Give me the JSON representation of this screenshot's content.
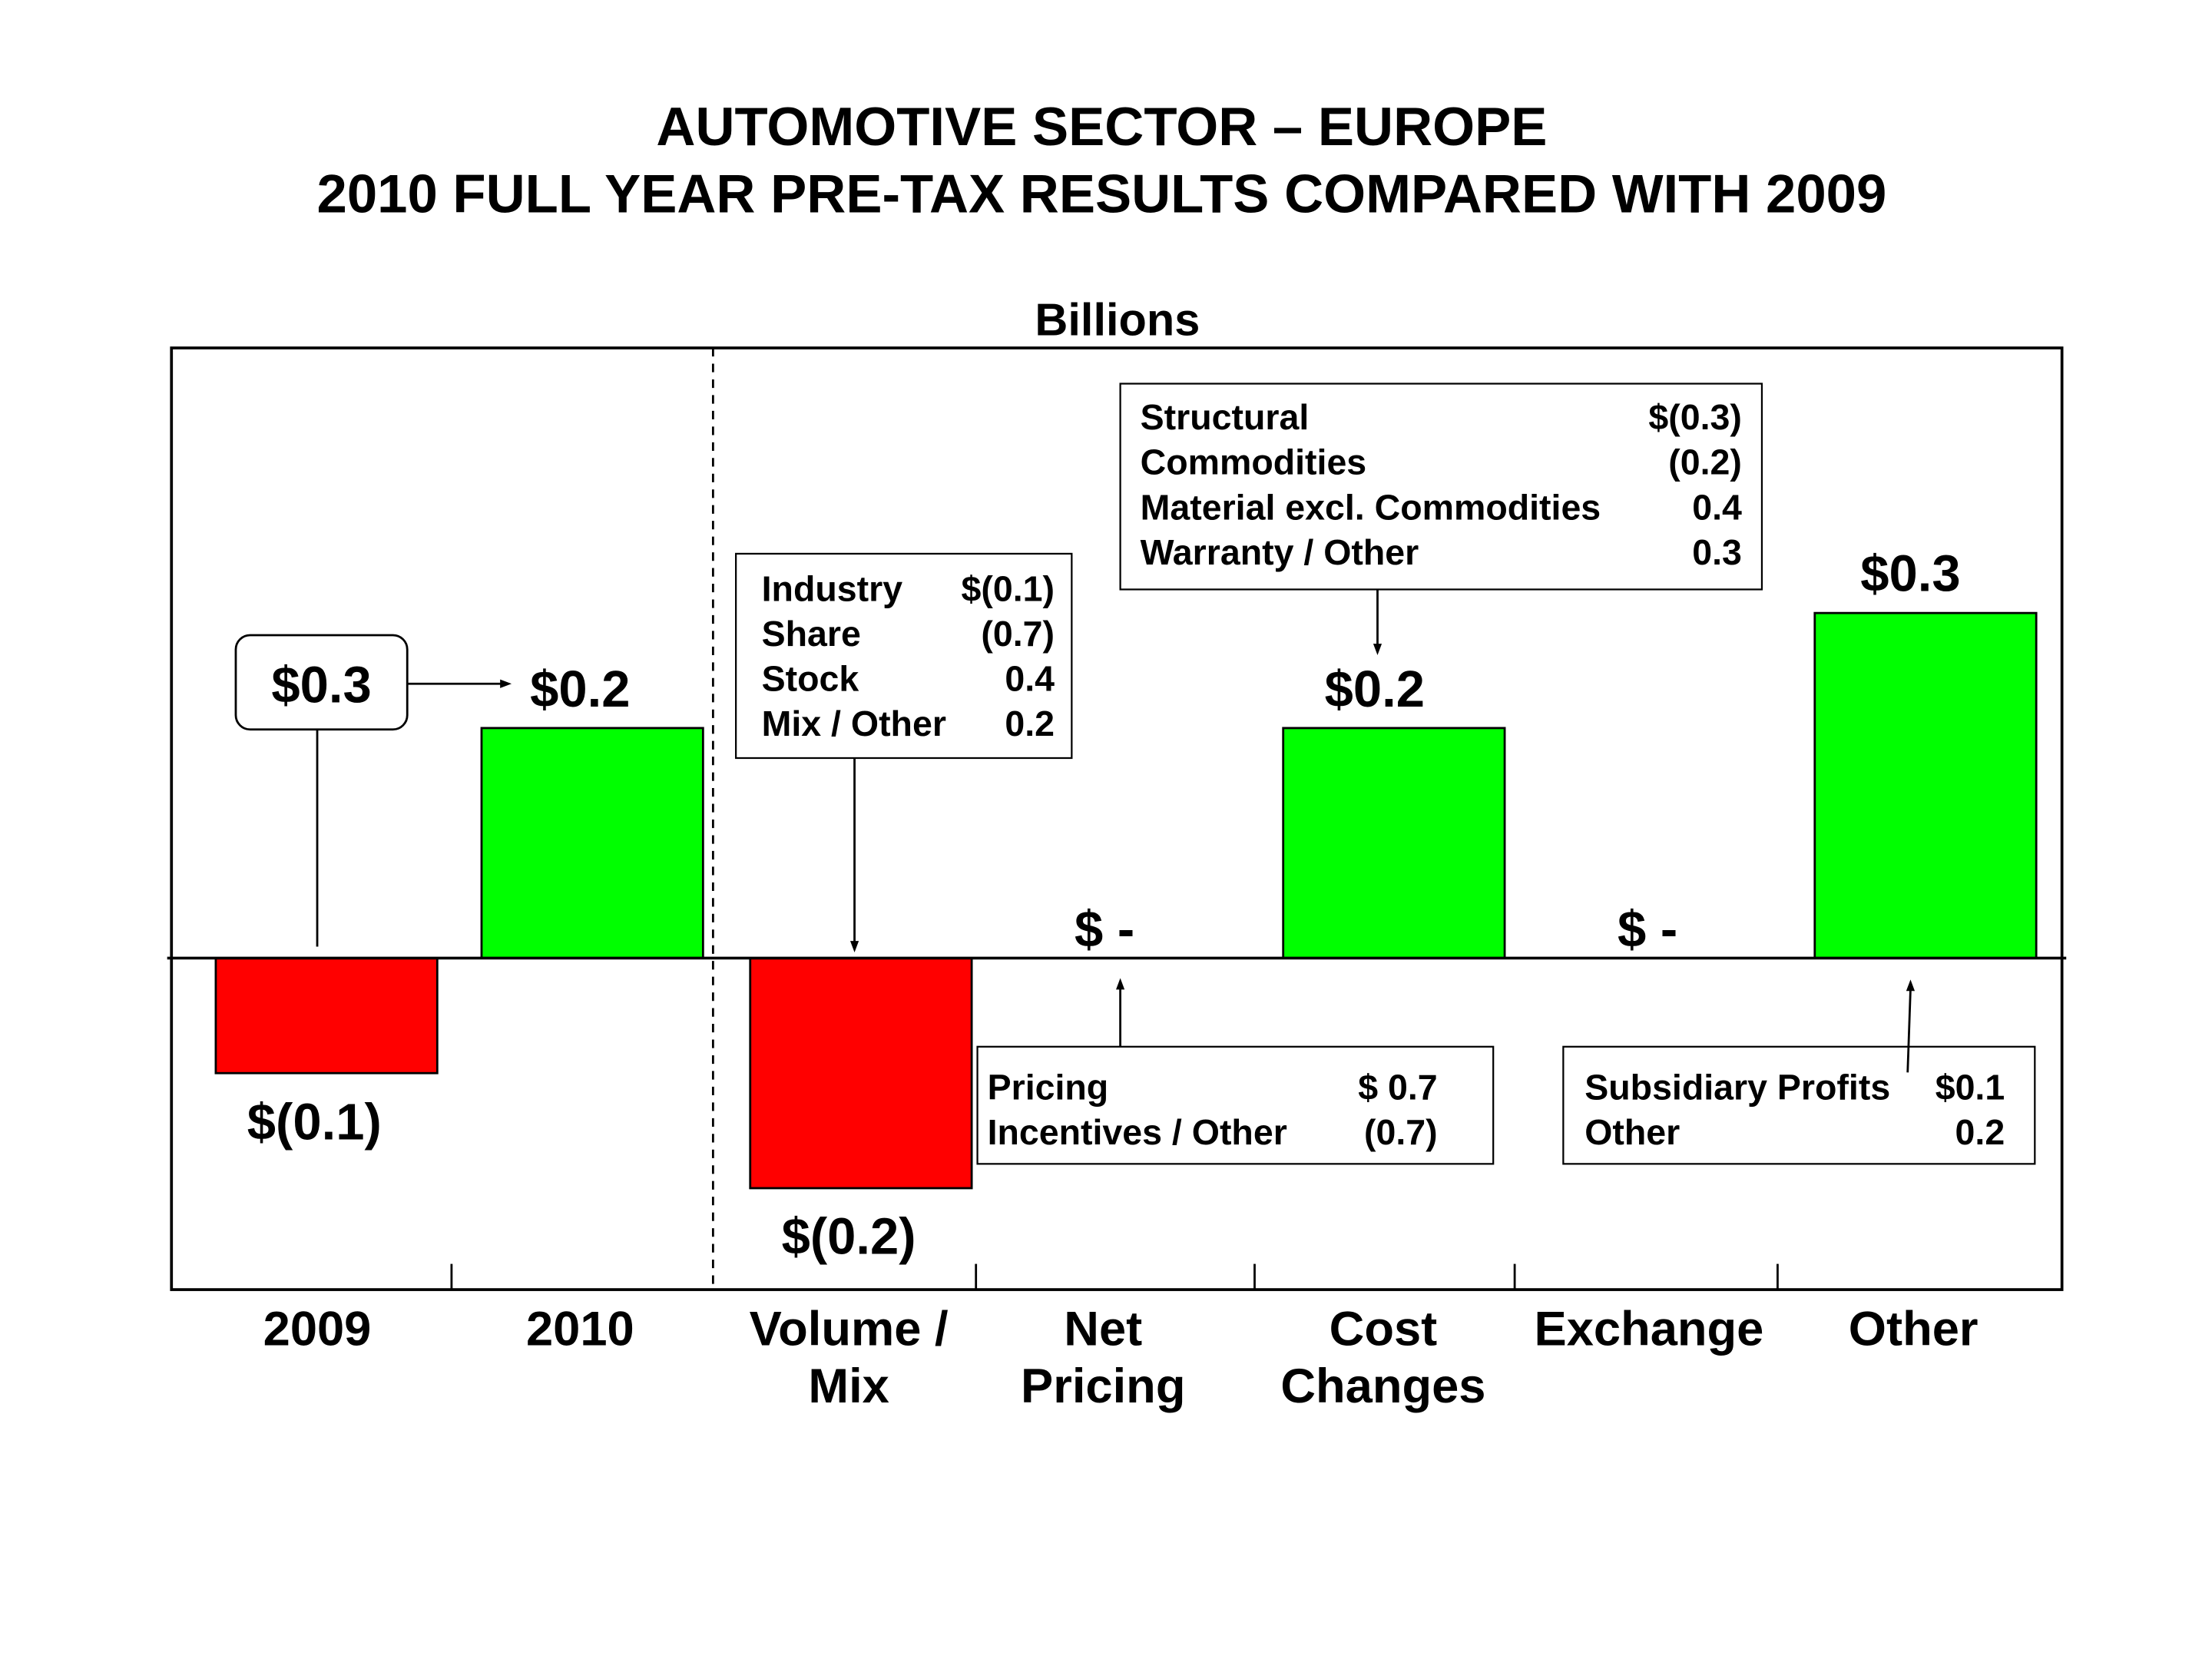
{
  "chart_data": {
    "type": "bar",
    "subtype": "waterfall",
    "title": [
      "AUTOMOTIVE SECTOR – EUROPE",
      "2010 FULL YEAR PRE-TAX RESULTS COMPARED WITH 2009"
    ],
    "ylabel": "Billions",
    "categories": [
      [
        "2009"
      ],
      [
        "2010"
      ],
      [
        "Volume /",
        "Mix"
      ],
      [
        "Net",
        "Pricing"
      ],
      [
        "Cost",
        "Changes"
      ],
      [
        "Exchange"
      ],
      [
        "Other"
      ]
    ],
    "values": [
      -0.1,
      0.2,
      -0.2,
      0.0,
      0.2,
      0.0,
      0.3
    ],
    "value_labels": [
      "$(0.1)",
      "$0.2",
      "$(0.2)",
      "$ -",
      "$0.2",
      "$ -",
      "$0.3"
    ],
    "colors": {
      "positive": "#00ff00",
      "negative": "#ff0000"
    },
    "callout_2009": "$0.3",
    "breakdowns": {
      "volume_mix": [
        [
          "Industry",
          "$(0.1)"
        ],
        [
          "Share",
          "(0.7)"
        ],
        [
          "Stock",
          "0.4"
        ],
        [
          "Mix / Other",
          "0.2"
        ]
      ],
      "cost_changes": [
        [
          "Structural",
          "$(0.3)"
        ],
        [
          "Commodities",
          "(0.2)"
        ],
        [
          "Material excl. Commodities",
          "0.4"
        ],
        [
          "Warranty / Other",
          "0.3"
        ]
      ],
      "net_pricing": [
        [
          "Pricing",
          "$ 0.7"
        ],
        [
          "Incentives / Other",
          "(0.7)"
        ]
      ],
      "other": [
        [
          "Subsidiary Profits",
          "$0.1"
        ],
        [
          "Other",
          "0.2"
        ]
      ]
    }
  }
}
